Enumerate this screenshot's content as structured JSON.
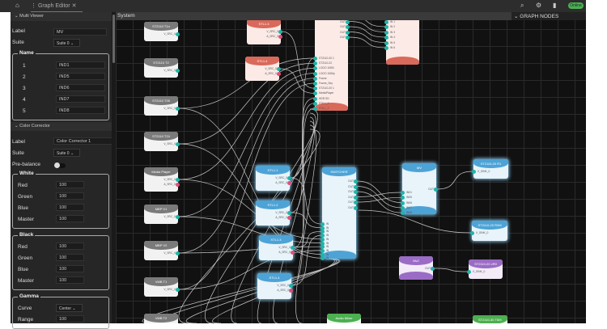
{
  "topbar": {
    "tab_label": "Graph Editor",
    "status": "Online",
    "icons": [
      "home-icon",
      "graph-icon",
      "close-icon",
      "search-icon",
      "gear-icon",
      "panel-icon"
    ]
  },
  "panel": {
    "multi_viewer": {
      "title": "Multi Viewer",
      "label_caption": "Label",
      "label_value": "MV",
      "suite_caption": "Suite",
      "suite_value": "Suite 0",
      "name_group": "Name",
      "names": [
        {
          "n": "1",
          "v": "IND1"
        },
        {
          "n": "2",
          "v": "IND5"
        },
        {
          "n": "3",
          "v": "IND6"
        },
        {
          "n": "4",
          "v": "IND7"
        },
        {
          "n": "5",
          "v": "IND8"
        }
      ]
    },
    "color_corrector": {
      "title": "Color Corrector",
      "label_caption": "Label",
      "label_value": "Color Corrector 1",
      "suite_caption": "Suite",
      "suite_value": "Suite 0",
      "prebalance_caption": "Pre-balance",
      "prebalance_on": false,
      "white": {
        "title": "White",
        "rows": [
          {
            "k": "Red",
            "v": "100"
          },
          {
            "k": "Green",
            "v": "100"
          },
          {
            "k": "Blue",
            "v": "100"
          },
          {
            "k": "Master",
            "v": "100"
          }
        ]
      },
      "black": {
        "title": "Black",
        "rows": [
          {
            "k": "Red",
            "v": "100"
          },
          {
            "k": "Green",
            "v": "100"
          },
          {
            "k": "Blue",
            "v": "100"
          },
          {
            "k": "Master",
            "v": "100"
          }
        ]
      },
      "gamma": {
        "title": "Gamma",
        "curve_caption": "Curve",
        "curve_value": "Center",
        "range_caption": "Range",
        "range_value": "100"
      }
    }
  },
  "canvas": {
    "title": "System",
    "graph_nodes_title": "GRAPH NODES",
    "nodes": [
      {
        "id": "t1",
        "title": "ST2110 T1n",
        "color": "gray",
        "outs": [
          "V_SRC_0"
        ]
      },
      {
        "id": "t2",
        "title": "ST2110 T2",
        "color": "gray",
        "outs": [
          "V_SRC_0"
        ]
      },
      {
        "id": "t26",
        "title": "ST2110 T26",
        "color": "gray",
        "outs": [
          "V_SRC_0"
        ]
      },
      {
        "id": "t24",
        "title": "ST2110 T24",
        "color": "gray",
        "outs": [
          "V_SRC_0"
        ]
      },
      {
        "id": "mp",
        "title": "Media Player",
        "color": "gray",
        "outs": [
          "V_SRC_0",
          "A_SRC_0"
        ]
      },
      {
        "id": "mbp1",
        "title": "MBP V1",
        "color": "gray",
        "outs": [
          "V_SRC_0"
        ]
      },
      {
        "id": "mbp2",
        "title": "MBP V2",
        "color": "gray",
        "outs": [
          "V_SRC_0"
        ]
      },
      {
        "id": "vmb1",
        "title": "VMB T1",
        "color": "gray",
        "outs": [
          "V_SRC_0"
        ]
      },
      {
        "id": "vmb2",
        "title": "VMB T2",
        "color": "gray",
        "outs": []
      },
      {
        "id": "stlr3",
        "title": "STL1.3",
        "color": "red",
        "outs": [
          "V_SRC_0",
          "A_SRC_0"
        ]
      },
      {
        "id": "stlr4",
        "title": "STL1.4",
        "color": "red",
        "outs": [
          "V_SRC_0",
          "A_SRC_0"
        ]
      },
      {
        "id": "bigred",
        "title": "",
        "color": "red",
        "outs": [
          "OUT",
          "OUT",
          "OUT",
          "OUT",
          "OUT"
        ],
        "ins": [
          "ST2110-20 1",
          "ST2110-22",
          "LOGO 1080i",
          "LOGO 1080p",
          "Frame",
          "Frame_Sey",
          "ST2110-20 1",
          "MediaPlayer",
          "HDR SD",
          "STILL_1",
          "STILL_2"
        ]
      },
      {
        "id": "redmv",
        "title": "",
        "color": "red",
        "outs": [],
        "ins": [
          "IN 0",
          "IN 1",
          "IN 2",
          "IN 3",
          "IN 4",
          "IN 5",
          "IN 6"
        ]
      },
      {
        "id": "stl1",
        "title": "STL1.1",
        "color": "blue",
        "outs": [
          "V_SRC_0",
          "A_SRC_0"
        ]
      },
      {
        "id": "stl2",
        "title": "STL1.2",
        "color": "blue",
        "outs": [
          "V_SRC_0",
          "A_SRC_0"
        ]
      },
      {
        "id": "stl3",
        "title": "STL1.3",
        "color": "blue",
        "outs": [
          "V_SRC_0",
          "A_SRC_0"
        ]
      },
      {
        "id": "stl4",
        "title": "STL1.4",
        "color": "blue",
        "outs": [
          "V_SRC_0",
          "A_SRC_0"
        ]
      },
      {
        "id": "sw",
        "title": "SWITCHER",
        "color": "blue",
        "outs": [
          "OUT",
          "OUT",
          "OUT",
          "OUT",
          "OUT",
          "OUT"
        ],
        "ins": [
          "IN",
          "IN",
          "IN",
          "IN",
          "IN",
          "IN",
          "IN",
          "IN",
          "IN",
          "IN"
        ]
      },
      {
        "id": "mv",
        "title": "MV",
        "color": "blue",
        "outs": [
          "OUT"
        ],
        "ins": [
          "IN01",
          "IN05",
          "IN06",
          "IN07",
          "IN08"
        ]
      },
      {
        "id": "r1",
        "title": "ST2110-20 R1",
        "color": "blue",
        "outs": [],
        "ins": [
          "V_SINK_0"
        ]
      },
      {
        "id": "r2",
        "title": "ST2110-20 R2M",
        "color": "blue",
        "outs": [],
        "ins": [
          "V_SINK_0"
        ]
      },
      {
        "id": "mv2",
        "title": "Mv2",
        "color": "purple",
        "outs": [
          "OUT"
        ]
      },
      {
        "id": "vr",
        "title": "ST2110-20 vR0",
        "color": "purple",
        "outs": [],
        "ins": [
          "V_SINK_0"
        ]
      },
      {
        "id": "am",
        "title": "Audio Mixer",
        "color": "green",
        "outs": []
      },
      {
        "id": "gm",
        "title": "ST2110-30 TMX",
        "color": "green",
        "outs": []
      }
    ]
  },
  "colors": {
    "accent_teal": "#1fb5a8",
    "port_audio": "#e0507a",
    "online": "#4caf50",
    "node_blue": "#4da3d6",
    "node_red": "#d9695a",
    "node_purple": "#9a6cc6",
    "node_green": "#4caf50"
  }
}
